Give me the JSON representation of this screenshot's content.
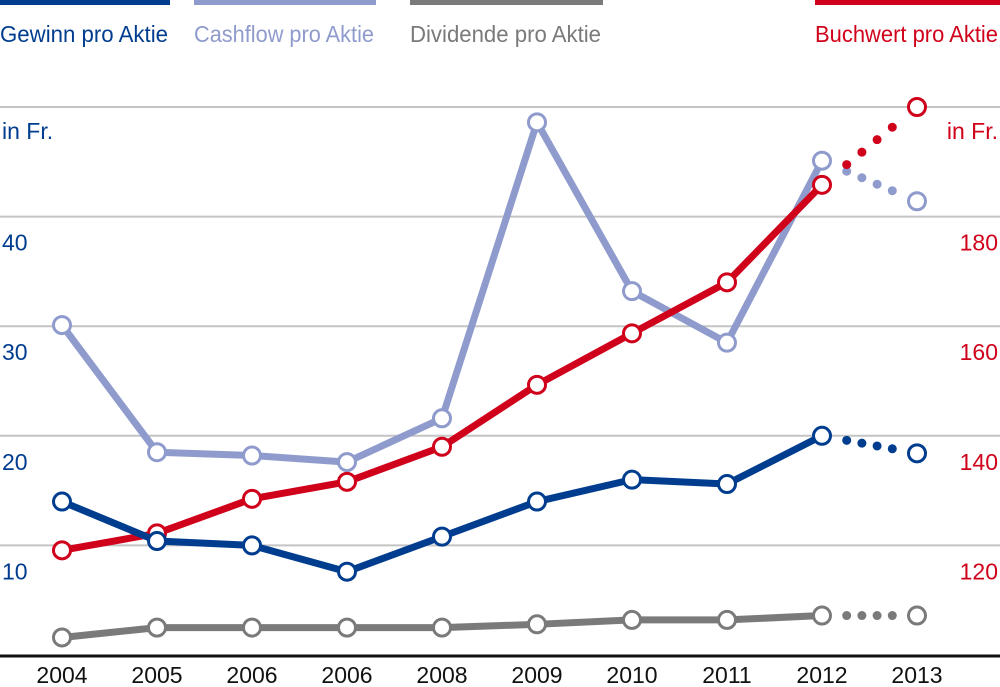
{
  "chart_data": {
    "type": "line",
    "x": [
      "2004",
      "2005",
      "2006",
      "2006",
      "2008",
      "2009",
      "2010",
      "2011",
      "2012",
      "2013"
    ],
    "left_axis": {
      "label": "in Fr.",
      "ticks": [
        10,
        20,
        30,
        40
      ],
      "tick_labels": [
        "10",
        "20",
        "30",
        "40"
      ],
      "range": [
        0,
        50
      ],
      "color": "#003d8f"
    },
    "right_axis": {
      "label": "in Fr.",
      "ticks": [
        120,
        140,
        160,
        180
      ],
      "tick_labels": [
        "120",
        "140",
        "160",
        "180"
      ],
      "range": [
        100,
        200
      ],
      "color": "#d0021b"
    },
    "grid": true,
    "legend_placement": "top",
    "series": [
      {
        "name": "Gewinn pro Aktie",
        "axis": "left",
        "color": "#003d8f",
        "values": [
          14.0,
          10.4,
          10.0,
          7.6,
          10.8,
          14.0,
          16.0,
          15.6,
          20.0,
          18.4
        ],
        "projected_from_index": 8
      },
      {
        "name": "Cashflow pro Aktie",
        "axis": "left",
        "color": "#8f9bcc",
        "values": [
          30.1,
          18.5,
          18.2,
          17.6,
          21.6,
          48.6,
          33.2,
          28.5,
          45.1,
          41.4
        ],
        "projected_from_index": 8
      },
      {
        "name": "Dividende pro Aktie",
        "axis": "left",
        "color": "#7a7a7a",
        "values": [
          1.6,
          2.5,
          2.5,
          2.5,
          2.5,
          2.8,
          3.2,
          3.2,
          3.6,
          3.6
        ],
        "projected_from_index": 8
      },
      {
        "name": "Buchwert pro Aktie",
        "axis": "right",
        "color": "#d0021b",
        "values": [
          119.1,
          122.2,
          128.5,
          131.6,
          138.0,
          149.3,
          158.7,
          168.0,
          185.8,
          200.0
        ],
        "projected_from_index": 8
      }
    ]
  }
}
